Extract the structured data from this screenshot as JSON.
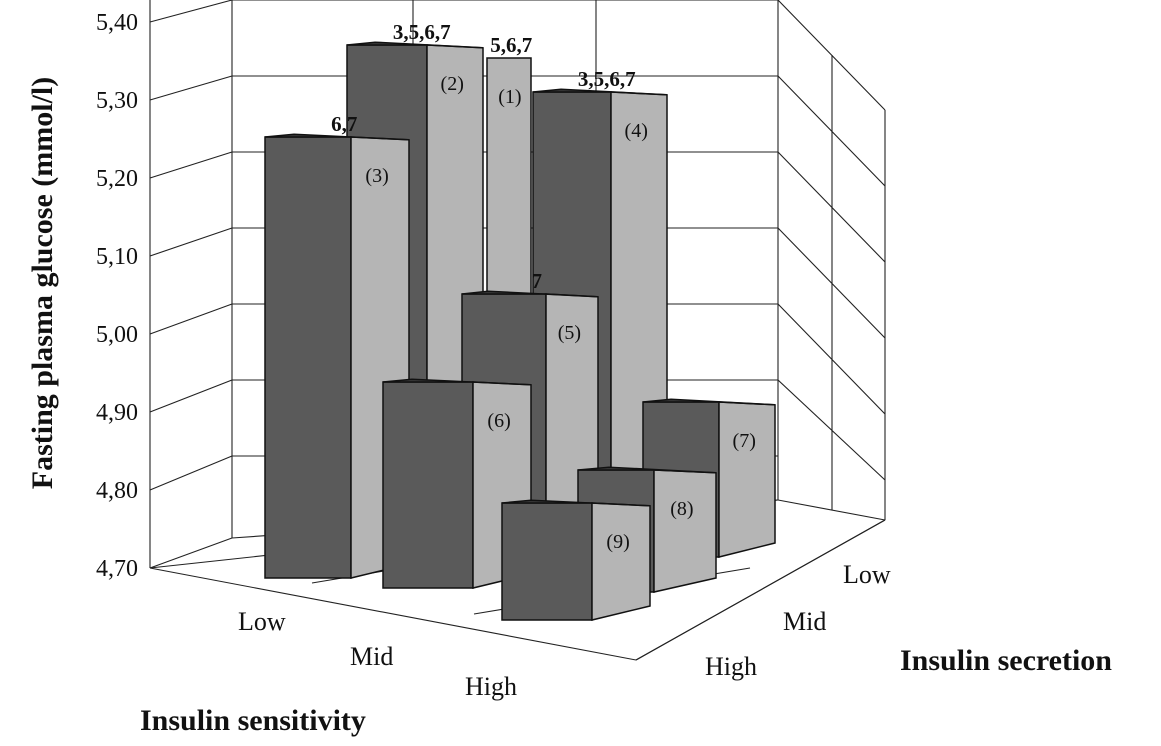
{
  "chart_data": {
    "type": "bar",
    "ylabel": "Fasting plasma glucose (mmol/l)",
    "xlabel": "Insulin sensitivity",
    "zlabel": "Insulin secretion",
    "x_categories": [
      "Low",
      "Mid",
      "High"
    ],
    "z_categories": [
      "Low",
      "Mid",
      "High"
    ],
    "ylim": [
      4.7,
      5.4
    ],
    "yticks": [
      "5,40",
      "5,30",
      "5,20",
      "5,10",
      "5,00",
      "4,90",
      "4,80",
      "4,70"
    ],
    "bars": [
      {
        "id": "(1)",
        "sensitivity": "Low",
        "secretion": "Low",
        "value": 5.37,
        "annotation": "5,6,7"
      },
      {
        "id": "(2)",
        "sensitivity": "Mid",
        "secretion": "Low",
        "value": 5.37,
        "annotation": "3,5,6,7"
      },
      {
        "id": "(3)",
        "sensitivity": "Low",
        "secretion": "High",
        "value": 5.25,
        "annotation": "6,7"
      },
      {
        "id": "(4)",
        "sensitivity": "High",
        "secretion": "Low",
        "value": 5.31,
        "annotation": "3,5,6,7"
      },
      {
        "id": "(5)",
        "sensitivity": "Mid",
        "secretion": "Mid",
        "value": 5.06,
        "annotation": "7"
      },
      {
        "id": "(6)",
        "sensitivity": "Mid",
        "secretion": "High",
        "value": 4.93,
        "annotation": ""
      },
      {
        "id": "(7)",
        "sensitivity": "High",
        "secretion": "Low",
        "value": 4.91,
        "annotation": ""
      },
      {
        "id": "(8)",
        "sensitivity": "High",
        "secretion": "Mid",
        "value": 4.85,
        "annotation": ""
      },
      {
        "id": "(9)",
        "sensitivity": "High",
        "secretion": "High",
        "value": 4.83,
        "annotation": ""
      }
    ],
    "grid": true,
    "colors": {
      "front": "#5a5a5a",
      "side": "#b5b5b5",
      "top": "#3a3a3a"
    }
  }
}
